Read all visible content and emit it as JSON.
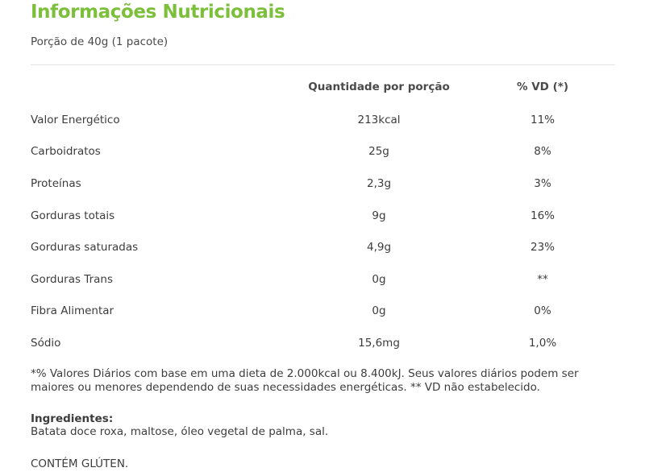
{
  "title": "Informações Nutricionais",
  "serving": "Porção de 40g (1 pacote)",
  "table": {
    "headers": {
      "nutrient": "",
      "quantity": "Quantidade por porção",
      "vd": "% VD (*)"
    },
    "rows": [
      {
        "nutrient": "Valor Energético",
        "quantity": "213kcal",
        "vd": "11%"
      },
      {
        "nutrient": "Carboidratos",
        "quantity": "25g",
        "vd": "8%"
      },
      {
        "nutrient": "Proteínas",
        "quantity": "2,3g",
        "vd": "3%"
      },
      {
        "nutrient": "Gorduras totais",
        "quantity": "9g",
        "vd": "16%"
      },
      {
        "nutrient": "Gorduras saturadas",
        "quantity": "4,9g",
        "vd": "23%"
      },
      {
        "nutrient": "Gorduras Trans",
        "quantity": "0g",
        "vd": "**"
      },
      {
        "nutrient": "Fibra Alimentar",
        "quantity": "0g",
        "vd": "0%"
      },
      {
        "nutrient": "Sódio",
        "quantity": "15,6mg",
        "vd": "1,0%"
      }
    ]
  },
  "footnote": "*% Valores Diários com base em uma dieta de 2.000kcal ou 8.400kJ. Seus valores diários podem ser maiores ou menores dependendo de suas necessidades energéticas. ** VD não estabelecido.",
  "ingredients": {
    "label": "Ingredientes:",
    "text": "Batata doce roxa, maltose, óleo vegetal de palma, sal."
  },
  "warning": "CONTÉM GLÚTEN."
}
